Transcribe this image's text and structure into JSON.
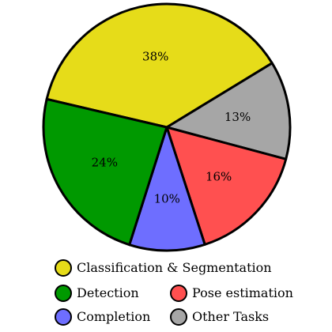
{
  "chart_data": {
    "type": "pie",
    "title": "",
    "slices": [
      {
        "name": "Classification & Segmentation",
        "value": 38,
        "label": "38%",
        "color": "#E6DC19"
      },
      {
        "name": "Other Tasks",
        "value": 13,
        "label": "13%",
        "color": "#A6A6A6"
      },
      {
        "name": "Pose estimation",
        "value": 16,
        "label": "16%",
        "color": "#FF5050"
      },
      {
        "name": "Completion",
        "value": 10,
        "label": "10%",
        "color": "#6E6EFF"
      },
      {
        "name": "Detection",
        "value": 24,
        "label": "24%",
        "color": "#009900"
      }
    ],
    "legend": {
      "placement": "bottom",
      "entries": [
        {
          "name": "Classification & Segmentation",
          "color": "#E6DC19"
        },
        {
          "name": "Detection",
          "color": "#009900"
        },
        {
          "name": "Pose estimation",
          "color": "#FF5050"
        },
        {
          "name": "Completion",
          "color": "#6E6EFF"
        },
        {
          "name": "Other Tasks",
          "color": "#A6A6A6"
        }
      ]
    }
  }
}
